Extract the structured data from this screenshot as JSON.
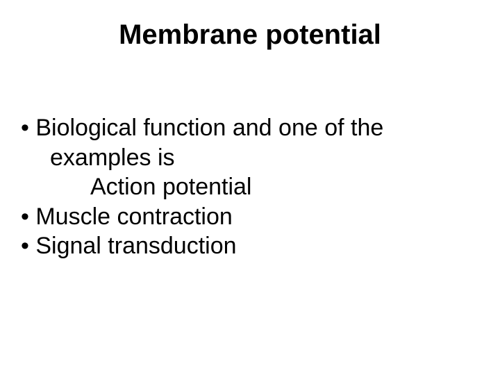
{
  "slide": {
    "title": "Membrane potential",
    "lines": {
      "l1": "•  Biological function and one of the",
      "l2": "examples is",
      "l3": "Action potential",
      "l4": "•  Muscle contraction",
      "l5": "• Signal transduction"
    },
    "title_fontsize": 40,
    "body_fontsize": 34,
    "text_color": "#000000",
    "background_color": "#ffffff"
  }
}
